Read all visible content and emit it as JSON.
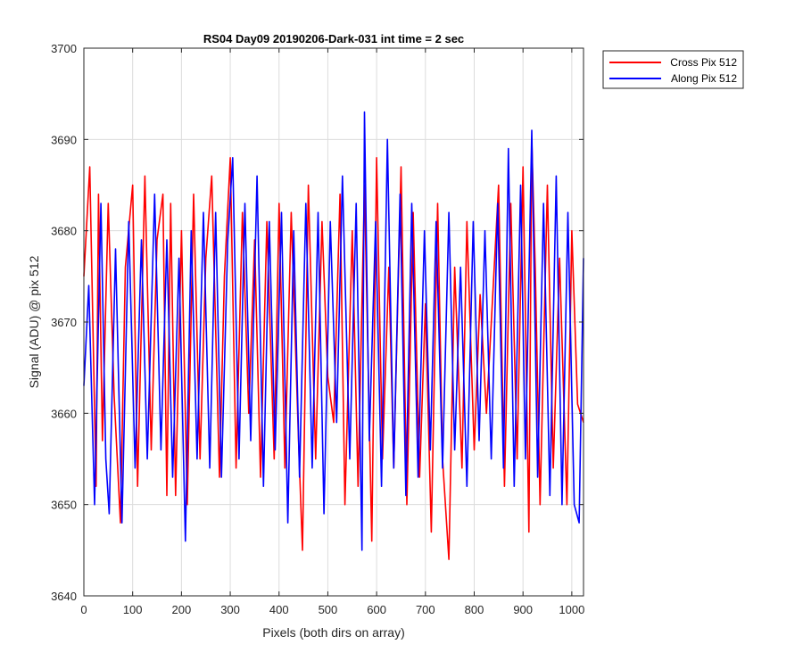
{
  "chart_data": {
    "type": "line",
    "title": "RS04 Day09 20190206-Dark-031 int time = 2 sec",
    "xlabel": "Pixels (both dirs on array)",
    "ylabel": "Signal (ADU) @ pix 512",
    "xlim": [
      0,
      1024
    ],
    "ylim": [
      3640,
      3700
    ],
    "xticks": [
      0,
      100,
      200,
      300,
      400,
      500,
      600,
      700,
      800,
      900,
      1000
    ],
    "yticks": [
      3640,
      3650,
      3660,
      3670,
      3680,
      3690,
      3700
    ],
    "grid": true,
    "legend_position": "outside-top-right",
    "series": [
      {
        "name": "Cross Pix 512",
        "color": "#ff0000",
        "x": [
          0,
          12,
          25,
          30,
          38,
          50,
          62,
          75,
          85,
          100,
          110,
          125,
          138,
          150,
          162,
          170,
          178,
          188,
          200,
          212,
          225,
          238,
          250,
          262,
          278,
          288,
          300,
          312,
          325,
          338,
          350,
          362,
          375,
          390,
          400,
          412,
          425,
          440,
          448,
          460,
          475,
          488,
          500,
          512,
          525,
          535,
          550,
          562,
          575,
          590,
          600,
          612,
          625,
          635,
          650,
          662,
          675,
          688,
          700,
          712,
          725,
          735,
          748,
          760,
          775,
          785,
          800,
          812,
          825,
          840,
          850,
          862,
          875,
          888,
          900,
          912,
          918,
          925,
          935,
          950,
          962,
          975,
          990,
          1000,
          1012,
          1024
        ],
        "values": [
          3675,
          3687,
          3652,
          3684,
          3657,
          3683,
          3662,
          3648,
          3676,
          3685,
          3652,
          3686,
          3656,
          3679,
          3684,
          3651,
          3683,
          3651,
          3680,
          3650,
          3684,
          3655,
          3677,
          3686,
          3653,
          3675,
          3688,
          3654,
          3682,
          3660,
          3679,
          3653,
          3681,
          3655,
          3683,
          3654,
          3682,
          3657,
          3645,
          3685,
          3655,
          3681,
          3664,
          3659,
          3684,
          3650,
          3680,
          3652,
          3685,
          3646,
          3688,
          3655,
          3676,
          3654,
          3687,
          3650,
          3682,
          3653,
          3672,
          3647,
          3683,
          3655,
          3644,
          3676,
          3654,
          3681,
          3656,
          3673,
          3660,
          3675,
          3685,
          3652,
          3683,
          3655,
          3687,
          3647,
          3690,
          3676,
          3650,
          3685,
          3654,
          3677,
          3650,
          3680,
          3661,
          3659
        ]
      },
      {
        "name": "Along Pix 512",
        "color": "#0000ff",
        "x": [
          0,
          10,
          22,
          35,
          45,
          52,
          65,
          78,
          92,
          105,
          118,
          130,
          145,
          158,
          170,
          182,
          195,
          208,
          220,
          232,
          245,
          258,
          270,
          282,
          295,
          305,
          318,
          330,
          342,
          355,
          368,
          380,
          392,
          405,
          418,
          430,
          442,
          455,
          468,
          480,
          492,
          505,
          518,
          530,
          545,
          558,
          570,
          575,
          585,
          598,
          610,
          622,
          635,
          648,
          660,
          672,
          685,
          698,
          710,
          722,
          735,
          748,
          760,
          772,
          785,
          798,
          810,
          822,
          835,
          848,
          860,
          870,
          882,
          895,
          905,
          918,
          930,
          942,
          955,
          968,
          980,
          992,
          1005,
          1015,
          1024
        ],
        "values": [
          3663,
          3674,
          3650,
          3683,
          3655,
          3649,
          3678,
          3648,
          3681,
          3654,
          3679,
          3655,
          3684,
          3656,
          3679,
          3653,
          3677,
          3646,
          3680,
          3655,
          3682,
          3654,
          3682,
          3653,
          3679,
          3688,
          3655,
          3683,
          3657,
          3686,
          3652,
          3681,
          3656,
          3682,
          3648,
          3680,
          3653,
          3683,
          3654,
          3682,
          3649,
          3681,
          3659,
          3686,
          3655,
          3683,
          3645,
          3693,
          3657,
          3681,
          3652,
          3690,
          3654,
          3684,
          3651,
          3683,
          3653,
          3680,
          3656,
          3681,
          3654,
          3682,
          3656,
          3676,
          3652,
          3681,
          3657,
          3680,
          3655,
          3683,
          3654,
          3689,
          3652,
          3685,
          3655,
          3691,
          3653,
          3683,
          3651,
          3686,
          3650,
          3682,
          3650,
          3648,
          3677
        ]
      }
    ]
  }
}
